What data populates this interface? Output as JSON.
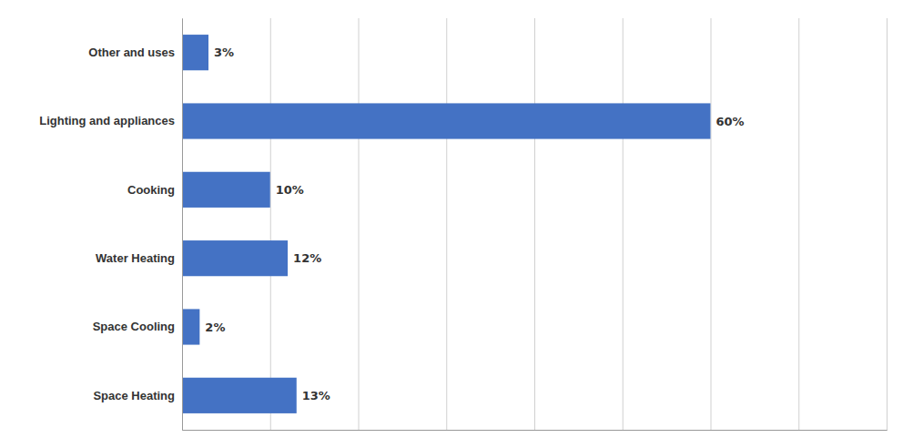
{
  "chart_data": {
    "type": "bar",
    "orientation": "horizontal",
    "categories": [
      "Space Heating",
      "Space Cooling",
      "Water Heating",
      "Cooking",
      "Lighting and appliances",
      "Other and uses"
    ],
    "values": [
      13,
      2,
      12,
      10,
      60,
      3
    ],
    "value_labels": [
      "13%",
      "2%",
      "12%",
      "10%",
      "60%",
      "3%"
    ],
    "data_labels": true,
    "color": "#4472C4",
    "xlim": [
      0,
      80
    ],
    "xticks": [
      0,
      10,
      20,
      30,
      40,
      50,
      60,
      70,
      80
    ],
    "grid": true,
    "tick_labels": "y"
  }
}
